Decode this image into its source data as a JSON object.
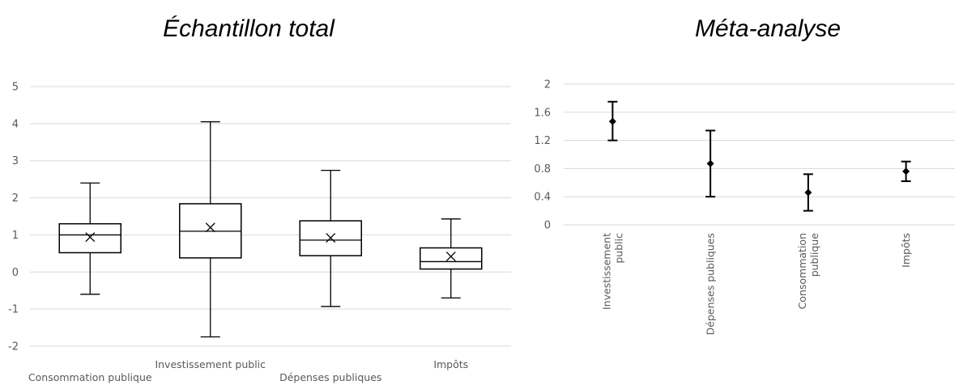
{
  "chart_data": [
    {
      "type": "boxplot",
      "title": "Échantillon total",
      "ylim": [
        -2,
        5
      ],
      "yticks": [
        "5",
        "4",
        "3",
        "2",
        "1",
        "0",
        "-1",
        "-2"
      ],
      "grid": true,
      "categories": [
        "Consommation publique",
        "Investissement public",
        "Dépenses publiques",
        "Impôts"
      ],
      "boxes": [
        {
          "min": -0.6,
          "q1": 0.52,
          "median": 1.0,
          "q3": 1.3,
          "max": 2.4,
          "mean": 0.94
        },
        {
          "min": -1.75,
          "q1": 0.38,
          "median": 1.1,
          "q3": 1.84,
          "max": 4.05,
          "mean": 1.2
        },
        {
          "min": -0.93,
          "q1": 0.44,
          "median": 0.86,
          "q3": 1.38,
          "max": 2.74,
          "mean": 0.92
        },
        {
          "min": -0.7,
          "q1": 0.08,
          "median": 0.28,
          "q3": 0.65,
          "max": 1.43,
          "mean": 0.42
        }
      ]
    },
    {
      "type": "errorbar",
      "title": "Méta-analyse",
      "ylim": [
        0,
        2
      ],
      "yticks": [
        "2",
        "1.6",
        "1.2",
        "0.8",
        "0.4",
        "0"
      ],
      "grid": true,
      "categories": [
        "Investissement\npublic",
        "Dépenses publiques",
        "Consommation\npublique",
        "Impôts"
      ],
      "points": [
        {
          "value": 1.47,
          "low": 1.2,
          "high": 1.75
        },
        {
          "value": 0.87,
          "low": 0.4,
          "high": 1.34
        },
        {
          "value": 0.46,
          "low": 0.2,
          "high": 0.72
        },
        {
          "value": 0.76,
          "low": 0.62,
          "high": 0.9
        }
      ]
    }
  ]
}
